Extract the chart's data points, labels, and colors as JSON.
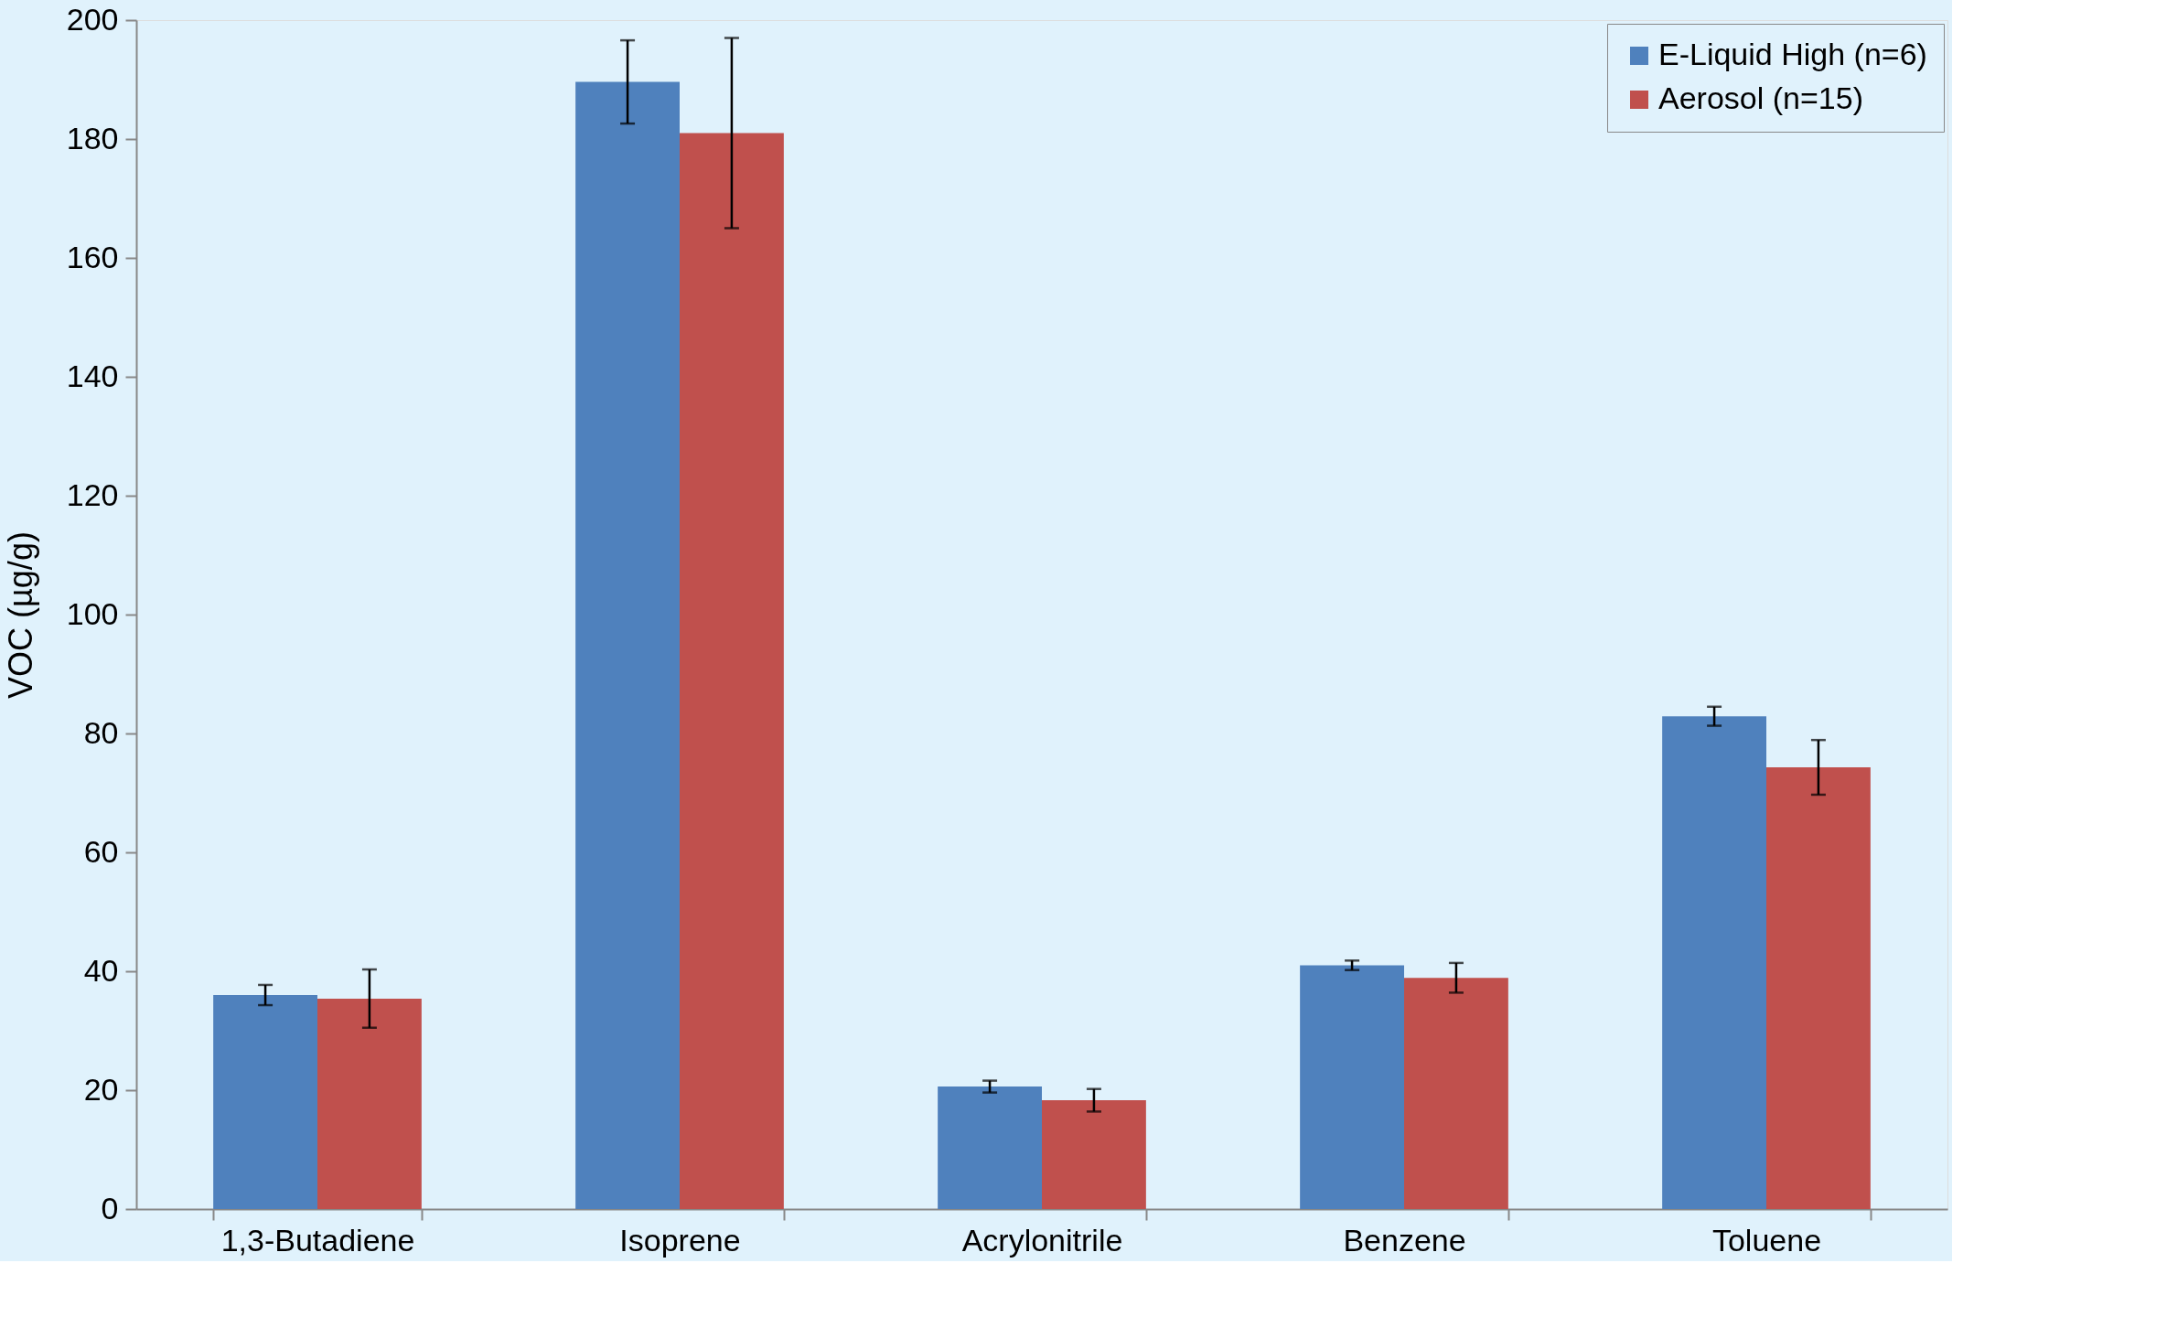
{
  "chart_data": {
    "type": "bar",
    "ylabel": "VOC (µg/g)",
    "categories": [
      "1,3-Butadiene",
      "Isoprene",
      "Acrylonitrile",
      "Benzene",
      "Toluene"
    ],
    "series": [
      {
        "name": "E-Liquid High (n=6)",
        "color": "#4f81bd",
        "values": [
          36,
          189.6,
          20.6,
          41,
          82.9
        ],
        "errors": [
          1.7,
          7,
          1,
          0.8,
          1.6
        ]
      },
      {
        "name": "Aerosol (n=15)",
        "color": "#c0504d",
        "values": [
          35.4,
          181,
          18.3,
          38.9,
          74.3
        ],
        "errors": [
          4.9,
          16,
          1.9,
          2.5,
          4.6
        ]
      }
    ],
    "ylim": [
      0,
      200
    ],
    "yticks": [
      0,
      20,
      40,
      60,
      80,
      100,
      120,
      140,
      160,
      180,
      200
    ],
    "grid": false,
    "legend": "top right"
  }
}
